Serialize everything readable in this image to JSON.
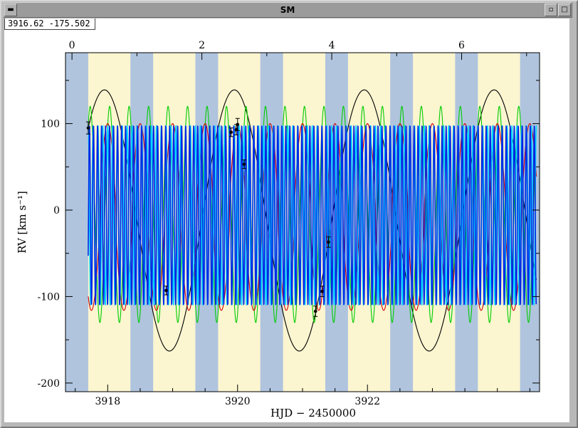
{
  "window": {
    "title": "SM",
    "coords_readout": "3916.62  -175.502",
    "menu_icon": "window-menu-icon",
    "minimize_icon": "minimize-icon",
    "maximize_icon": "maximize-icon"
  },
  "chart_data": {
    "type": "line",
    "xlabel": "HJD − 2450000",
    "ylabel": "RV [km s⁻¹]",
    "xlim": [
      3917.35,
      3924.65
    ],
    "ylim": [
      -210,
      182
    ],
    "x_ticks": [
      3918,
      3920,
      3922
    ],
    "x_minor_step": 0.5,
    "y_ticks": [
      -200,
      -100,
      0,
      100
    ],
    "y_minor_step": 50,
    "top_axis": {
      "ticks": [
        0,
        2,
        4,
        6
      ],
      "minor_step": 1,
      "start_hjd": 3917.45,
      "days_per_unit": 1.0
    },
    "grid": false,
    "night_bands": {
      "colors": {
        "night": "#b0c4de",
        "day": "#fbf5d0"
      },
      "period": 1.0,
      "first_night_start": 3917.35,
      "night_length": 0.35,
      "data_end": 3924.65
    },
    "series": [
      {
        "name": "",
        "color": "#000000",
        "kind": "sine",
        "amplitude": 151,
        "offset": -12,
        "period": 2.0,
        "peak_x": 3919.95
      },
      {
        "name": "",
        "color": "#00cc00",
        "kind": "sine",
        "amplitude": 125,
        "offset": -5,
        "period": 0.3,
        "peak_x": 3918.33
      },
      {
        "name": "",
        "color": "#d40000",
        "kind": "eccentric",
        "amplitude": 108,
        "offset": -8,
        "period": 0.5,
        "peak_x": 3918.5
      },
      {
        "name": "",
        "color": "#00d8ff",
        "kind": "dense",
        "amplitude": 104,
        "offset": -6,
        "period": 0.075,
        "peak_x": 3917.7
      },
      {
        "name": "",
        "color": "#0028e6",
        "kind": "dense",
        "amplitude": 104,
        "offset": -6,
        "period": 0.0617,
        "peak_x": 3917.72
      }
    ],
    "model_range": [
      3917.7,
      3924.6
    ],
    "observations": [
      {
        "x": 3917.7,
        "y": 95,
        "err": 7
      },
      {
        "x": 3918.9,
        "y": -93,
        "err": 5
      },
      {
        "x": 3919.9,
        "y": 90,
        "err": 5
      },
      {
        "x": 3919.98,
        "y": 93,
        "err": 6
      },
      {
        "x": 3920.0,
        "y": 99,
        "err": 7
      },
      {
        "x": 3920.1,
        "y": 53,
        "err": 5
      },
      {
        "x": 3921.2,
        "y": -117,
        "err": 6
      },
      {
        "x": 3921.3,
        "y": -94,
        "err": 6
      },
      {
        "x": 3921.4,
        "y": -37,
        "err": 6
      }
    ]
  }
}
